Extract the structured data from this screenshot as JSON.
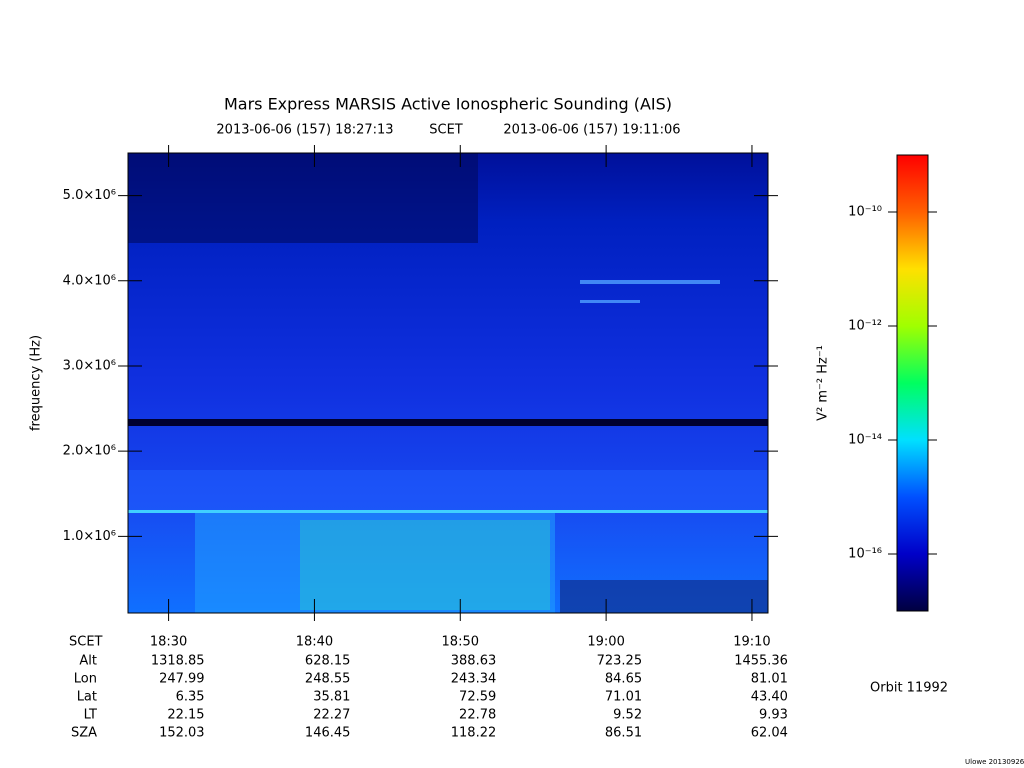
{
  "chart_data": {
    "type": "heatmap",
    "title": "Mars Express MARSIS Active Ionospheric Sounding (AIS)",
    "start_label": "2013-06-06 (157) 18:27:13",
    "time_system": "SCET",
    "end_label": "2013-06-06 (157) 19:11:06",
    "y_label": "frequency (Hz)",
    "xlim": [
      "18:27:13",
      "19:11:06"
    ],
    "xticks": [
      "18:30",
      "18:40",
      "18:50",
      "19:00",
      "19:10"
    ],
    "ylim": [
      100000,
      5500000
    ],
    "yticks": [
      {
        "value": 1000000,
        "label": "1.0×10⁶"
      },
      {
        "value": 2000000,
        "label": "2.0×10⁶"
      },
      {
        "value": 3000000,
        "label": "3.0×10⁶"
      },
      {
        "value": 4000000,
        "label": "4.0×10⁶"
      },
      {
        "value": 5000000,
        "label": "5.0×10⁶"
      }
    ],
    "colorbar": {
      "label": "V² m⁻² Hz⁻¹",
      "log": true,
      "lim": [
        1e-17,
        1e-09
      ],
      "ticks": [
        {
          "value": 1e-10,
          "label": "10⁻¹⁰"
        },
        {
          "value": 1e-12,
          "label": "10⁻¹²"
        },
        {
          "value": 1e-14,
          "label": "10⁻¹⁴"
        },
        {
          "value": 1e-16,
          "label": "10⁻¹⁶"
        }
      ],
      "colormap": [
        "#000040",
        "#0000c8",
        "#0050ff",
        "#00e0ff",
        "#00ff60",
        "#a0ff00",
        "#ffe000",
        "#ff6000",
        "#ff0000"
      ]
    },
    "ephemeris": {
      "time_row_label": "SCET",
      "rows": [
        {
          "name": "Alt",
          "values": [
            "1318.85",
            "628.15",
            "388.63",
            "723.25",
            "1455.36"
          ]
        },
        {
          "name": "Lon",
          "values": [
            "247.99",
            "248.55",
            "243.34",
            "84.65",
            "81.01"
          ]
        },
        {
          "name": "Lat",
          "values": [
            "6.35",
            "35.81",
            "72.59",
            "71.01",
            "43.40"
          ]
        },
        {
          "name": "LT",
          "values": [
            "22.15",
            "22.27",
            "22.78",
            "9.52",
            "9.93"
          ]
        },
        {
          "name": "SZA",
          "values": [
            "152.03",
            "146.45",
            "118.22",
            "86.51",
            "62.04"
          ]
        }
      ]
    },
    "orbit": "Orbit 11992",
    "footer": "Ulowe 20130926"
  }
}
